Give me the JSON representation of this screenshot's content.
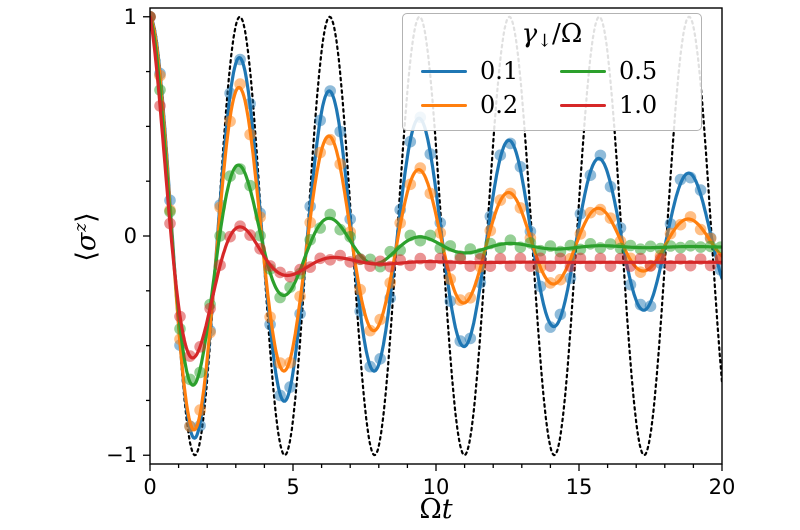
{
  "figure": {
    "background": "#ffffff",
    "frame_color": "#000000"
  },
  "chart_data": {
    "type": "line",
    "title": "",
    "xlabel": "Ωt",
    "xlabel_parts": {
      "omega": "Ω",
      "t": "t"
    },
    "ylabel": "⟨σᶻ⟩",
    "ylabel_parts": {
      "open": "⟨",
      "sigma": "σ",
      "sup": "z",
      "close": "⟩"
    },
    "xlim": [
      0,
      20
    ],
    "ylim": [
      -1.04,
      1.04
    ],
    "x_ticks": [
      {
        "value": 0,
        "label": "0"
      },
      {
        "value": 5,
        "label": "5"
      },
      {
        "value": 10,
        "label": "10"
      },
      {
        "value": 15,
        "label": "15"
      },
      {
        "value": 20,
        "label": "20"
      }
    ],
    "y_ticks": [
      {
        "value": 1,
        "label": "1"
      },
      {
        "value": 0,
        "label": "0"
      },
      {
        "value": -1,
        "label": "−1"
      }
    ],
    "x_minor_step": 1,
    "y_minor_step": 0.25,
    "grid": false,
    "legend": {
      "title": "γ↓/Ω",
      "title_parts": {
        "gamma": "γ",
        "sub": "↓",
        "post": "/Ω"
      },
      "position": "upper right",
      "columns": 2,
      "entries": [
        {
          "label": "0.1",
          "series": 1
        },
        {
          "label": "0.2",
          "series": 2
        },
        {
          "label": "0.5",
          "series": 3
        },
        {
          "label": "1.0",
          "series": 4
        }
      ]
    },
    "series": [
      {
        "name": "undamped reference cos(2Ωt)",
        "label": "",
        "in_legend": false,
        "color": "#000000",
        "line_style": "dotted",
        "line_width": 2.2,
        "has_dots": false,
        "model": {
          "offset": 0,
          "amp": 1,
          "decay": 0,
          "nu": 2
        },
        "steady_state": 0,
        "extrema": [
          [
            1.6,
            -1.0
          ],
          [
            3.1,
            1.0
          ],
          [
            4.7,
            -1.0
          ],
          [
            6.3,
            1.0
          ],
          [
            7.9,
            -1.0
          ],
          [
            9.4,
            1.0
          ],
          [
            11.0,
            -1.0
          ],
          [
            12.6,
            1.0
          ],
          [
            14.1,
            -1.0
          ],
          [
            15.7,
            1.0
          ],
          [
            17.3,
            -1.0
          ],
          [
            18.9,
            1.0
          ]
        ]
      },
      {
        "name": "γ↓/Ω = 0.1",
        "label": "0.1",
        "in_legend": true,
        "color": "#1f77b4",
        "line_style": "solid",
        "line_width": 3.2,
        "has_dots": true,
        "model": {
          "offset": -0.01,
          "amp": 1.01,
          "decay": 0.065,
          "nu": 2.0
        },
        "steady_state": -0.01,
        "extrema": [
          [
            1.6,
            -0.92
          ],
          [
            3.1,
            0.8
          ],
          [
            4.7,
            -0.75
          ],
          [
            6.3,
            0.66
          ],
          [
            7.9,
            -0.61
          ],
          [
            9.4,
            0.54
          ],
          [
            11.0,
            -0.5
          ],
          [
            12.6,
            0.44
          ],
          [
            14.1,
            -0.41
          ],
          [
            15.7,
            0.36
          ],
          [
            17.3,
            -0.34
          ],
          [
            18.9,
            0.29
          ]
        ]
      },
      {
        "name": "γ↓/Ω = 0.2",
        "label": "0.2",
        "in_legend": true,
        "color": "#ff7f0e",
        "line_style": "solid",
        "line_width": 3.2,
        "has_dots": true,
        "model": {
          "offset": -0.03,
          "amp": 1.03,
          "decay": 0.12,
          "nu": 2.0
        },
        "steady_state": -0.03,
        "extrema": [
          [
            1.6,
            -0.88
          ],
          [
            3.1,
            0.68
          ],
          [
            4.7,
            -0.62
          ],
          [
            6.3,
            0.46
          ],
          [
            7.9,
            -0.43
          ],
          [
            9.4,
            0.3
          ],
          [
            11.0,
            -0.31
          ],
          [
            12.6,
            0.2
          ],
          [
            14.1,
            -0.22
          ],
          [
            15.7,
            0.13
          ],
          [
            17.3,
            -0.16
          ],
          [
            18.9,
            0.08
          ]
        ]
      },
      {
        "name": "γ↓/Ω = 0.5",
        "label": "0.5",
        "in_legend": true,
        "color": "#2ca02c",
        "line_style": "solid",
        "line_width": 3.2,
        "has_dots": true,
        "model": {
          "offset": -0.05,
          "amp": 1.05,
          "decay": 0.33,
          "nu": 1.98
        },
        "steady_state": -0.05,
        "extrema": [
          [
            1.6,
            -0.67
          ],
          [
            3.2,
            0.32
          ],
          [
            4.8,
            -0.27
          ],
          [
            6.3,
            0.08
          ],
          [
            7.9,
            -0.13
          ],
          [
            9.5,
            -0.01
          ],
          [
            11.1,
            -0.08
          ],
          [
            12.7,
            -0.03
          ]
        ]
      },
      {
        "name": "γ↓/Ω = 1.0",
        "label": "1.0",
        "in_legend": true,
        "color": "#d62728",
        "line_style": "solid",
        "line_width": 3.2,
        "has_dots": true,
        "model": {
          "offset": -0.12,
          "amp": 1.12,
          "decay": 0.6,
          "nu": 1.9
        },
        "steady_state": -0.12,
        "extrema": [
          [
            1.7,
            -0.54
          ],
          [
            3.3,
            0.03
          ],
          [
            5.0,
            -0.18
          ],
          [
            6.6,
            -0.1
          ],
          [
            8.3,
            -0.13
          ]
        ]
      }
    ]
  }
}
